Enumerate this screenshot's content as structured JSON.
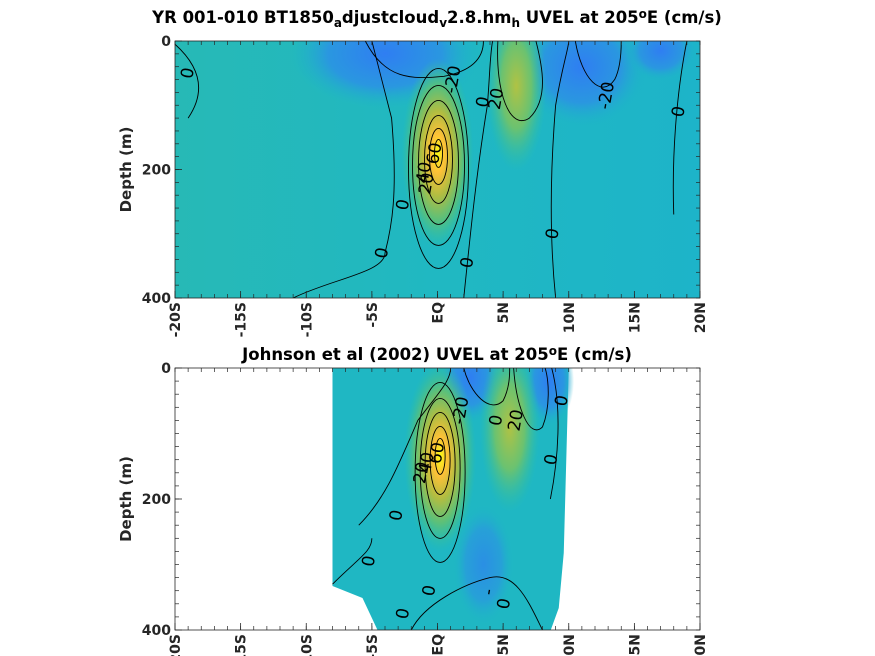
{
  "chart_data": [
    {
      "type": "contour",
      "title_parts": [
        "YR 001-010 BT1850",
        "a",
        "djustcloud",
        "v",
        "2.8.hm",
        "h",
        " UVEL at 205",
        "o",
        "E (cm/s)"
      ],
      "title_styles": [
        "n",
        "sub",
        "n",
        "sub",
        "n",
        "sub",
        "n",
        "sup",
        "n"
      ],
      "ylabel": "Depth (m)",
      "xlabel": "",
      "xlim": [
        -20,
        20
      ],
      "ylim": [
        400,
        0
      ],
      "xticks": [
        -20,
        -15,
        -10,
        -5,
        0,
        5,
        10,
        15,
        20
      ],
      "xticklabels": [
        "-20S",
        "-15S",
        "-10S",
        "-5S",
        "EQ",
        "5N",
        "10N",
        "15N",
        "20N"
      ],
      "yticks": [
        0,
        200,
        400
      ],
      "yticklabels": [
        "0",
        "200",
        "400"
      ],
      "contour_labels": [
        {
          "text": "0",
          "x": -19.0,
          "y": 50
        },
        {
          "text": "-20",
          "x": 1.2,
          "y": 60
        },
        {
          "text": "0",
          "x": 3.5,
          "y": 95
        },
        {
          "text": "20",
          "x": 4.5,
          "y": 90
        },
        {
          "text": "-20",
          "x": 12.9,
          "y": 85
        },
        {
          "text": "0",
          "x": 18.4,
          "y": 110
        },
        {
          "text": "60",
          "x": -0.2,
          "y": 175
        },
        {
          "text": "40",
          "x": -1.0,
          "y": 205
        },
        {
          "text": "20",
          "x": -0.8,
          "y": 222
        },
        {
          "text": "0",
          "x": -2.6,
          "y": 255
        },
        {
          "text": "0",
          "x": -4.2,
          "y": 330
        },
        {
          "text": "0",
          "x": 2.3,
          "y": 345
        },
        {
          "text": "0",
          "x": 8.8,
          "y": 300
        }
      ],
      "jets": [
        {
          "name": "undercurrent",
          "x": 0,
          "y": 175,
          "peak": 85
        },
        {
          "name": "north-jet",
          "x": 6,
          "y": 70,
          "peak": 30
        }
      ],
      "colormap": [
        "#3e26a8",
        "#2f6efe",
        "#12b2d5",
        "#2ec1a0",
        "#b0bd42",
        "#fec137",
        "#f9fb15"
      ],
      "clim": [
        -40,
        100
      ]
    },
    {
      "type": "contour",
      "title_parts": [
        "Johnson et al (2002) UVEL at 205",
        "o",
        "E (cm/s)"
      ],
      "title_styles": [
        "n",
        "sup",
        "n"
      ],
      "ylabel": "Depth (m)",
      "xlabel": "",
      "xlim": [
        -20,
        20
      ],
      "ylim": [
        400,
        0
      ],
      "xticks": [
        -20,
        -15,
        -10,
        -5,
        0,
        5,
        10,
        15,
        20
      ],
      "xticklabels": [
        "-20S",
        "-15S",
        "-10S",
        "-5S",
        "EQ",
        "5N",
        "10N",
        "15N",
        "20N"
      ],
      "yticks": [
        0,
        200,
        400
      ],
      "yticklabels": [
        "0",
        "200",
        "400"
      ],
      "data_extent": {
        "x": [
          -8,
          10
        ]
      },
      "contour_labels": [
        {
          "text": "-20",
          "x": 1.8,
          "y": 65
        },
        {
          "text": "0",
          "x": 4.5,
          "y": 80
        },
        {
          "text": "20",
          "x": 6.0,
          "y": 80
        },
        {
          "text": "0",
          "x": 9.5,
          "y": 50
        },
        {
          "text": "60",
          "x": 0.0,
          "y": 130
        },
        {
          "text": "40",
          "x": -0.8,
          "y": 145
        },
        {
          "text": "20",
          "x": -1.2,
          "y": 160
        },
        {
          "text": "0",
          "x": 8.7,
          "y": 140
        },
        {
          "text": "0",
          "x": -3.1,
          "y": 225
        },
        {
          "text": "0",
          "x": -5.2,
          "y": 295
        },
        {
          "text": "0",
          "x": -0.6,
          "y": 340
        },
        {
          "text": "-",
          "x": 3.9,
          "y": 342
        },
        {
          "text": "0",
          "x": -2.6,
          "y": 375
        },
        {
          "text": "0",
          "x": 5.1,
          "y": 360
        }
      ],
      "jets": [
        {
          "name": "undercurrent",
          "x": 0.2,
          "y": 135,
          "peak": 95
        },
        {
          "name": "north-jet",
          "x": 5.5,
          "y": 90,
          "peak": 25
        }
      ],
      "colormap": [
        "#3e26a8",
        "#2f6efe",
        "#12b2d5",
        "#2ec1a0",
        "#b0bd42",
        "#fec137",
        "#f9fb15"
      ],
      "clim": [
        -40,
        100
      ]
    }
  ]
}
